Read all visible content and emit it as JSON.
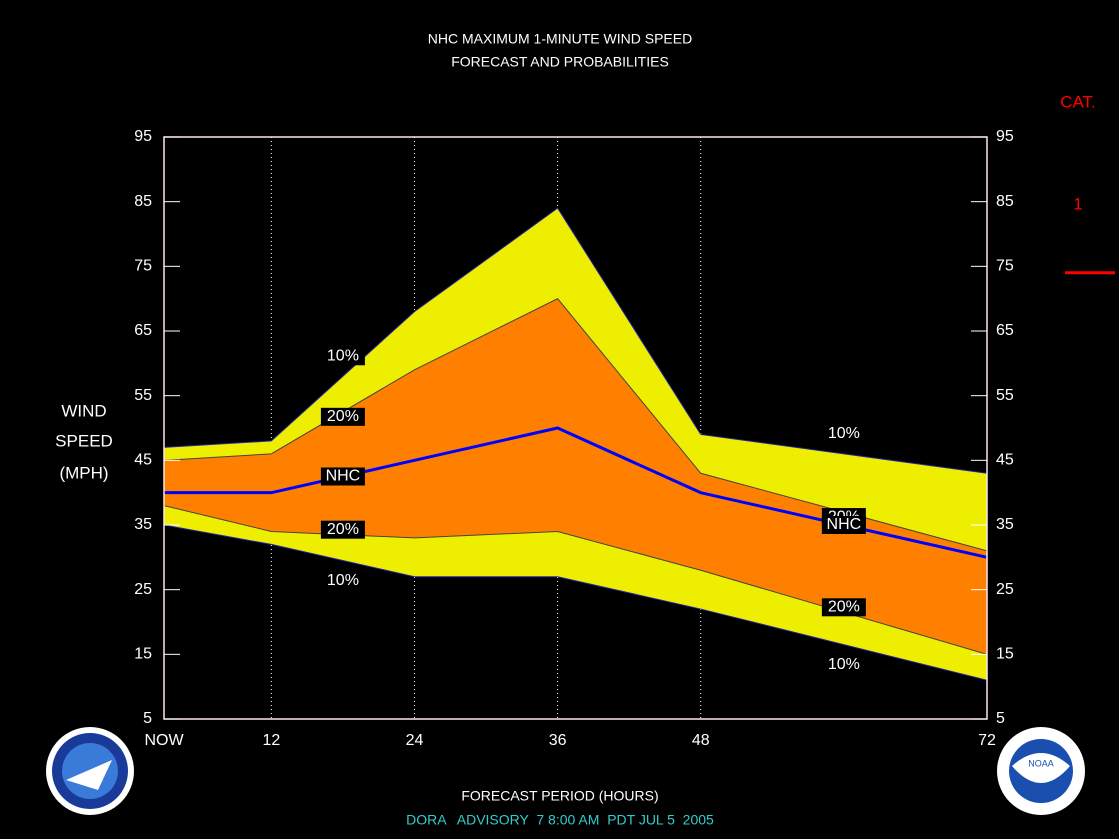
{
  "chart_data": {
    "type": "band",
    "title": "NHC MAXIMUM 1-MINUTE WIND SPEED",
    "subtitle": "FORECAST AND PROBABILITIES",
    "ylabel": [
      "WIND",
      "SPEED",
      "(MPH)"
    ],
    "xlabel": "FORECAST PERIOD (HOURS)",
    "footer": "DORA   ADVISORY  7 8:00 AM  PDT JUL 5  2005",
    "x": [
      3,
      12,
      24,
      36,
      48,
      72
    ],
    "xlim": [
      3,
      72
    ],
    "xticks": [
      {
        "value": 3,
        "label": "NOW"
      },
      12,
      24,
      36,
      48,
      72
    ],
    "ylim": [
      5,
      95
    ],
    "yticks": [
      5,
      15,
      25,
      35,
      45,
      55,
      65,
      75,
      85,
      95
    ],
    "grid": true,
    "series": [
      {
        "name": "10%",
        "color": "#eeee00",
        "values": [
          47,
          48,
          68,
          84,
          49,
          43
        ]
      },
      {
        "name": "20%",
        "color": "#ff8000",
        "values": [
          45,
          46,
          59,
          70,
          43,
          31
        ]
      },
      {
        "name": "NHC",
        "color": "#0000ff",
        "values": [
          40,
          40,
          45,
          50,
          40,
          30
        ]
      },
      {
        "name": "20%",
        "color": "#ff8000",
        "values": [
          38,
          34,
          33,
          34,
          28,
          15
        ]
      },
      {
        "name": "10%",
        "color": "#eeee00",
        "values": [
          35,
          32,
          27,
          27,
          22,
          11
        ]
      }
    ],
    "category_title": "CAT.",
    "category_thresholds": [
      {
        "label": "1",
        "value": 74,
        "color": "#ff0000"
      }
    ]
  }
}
